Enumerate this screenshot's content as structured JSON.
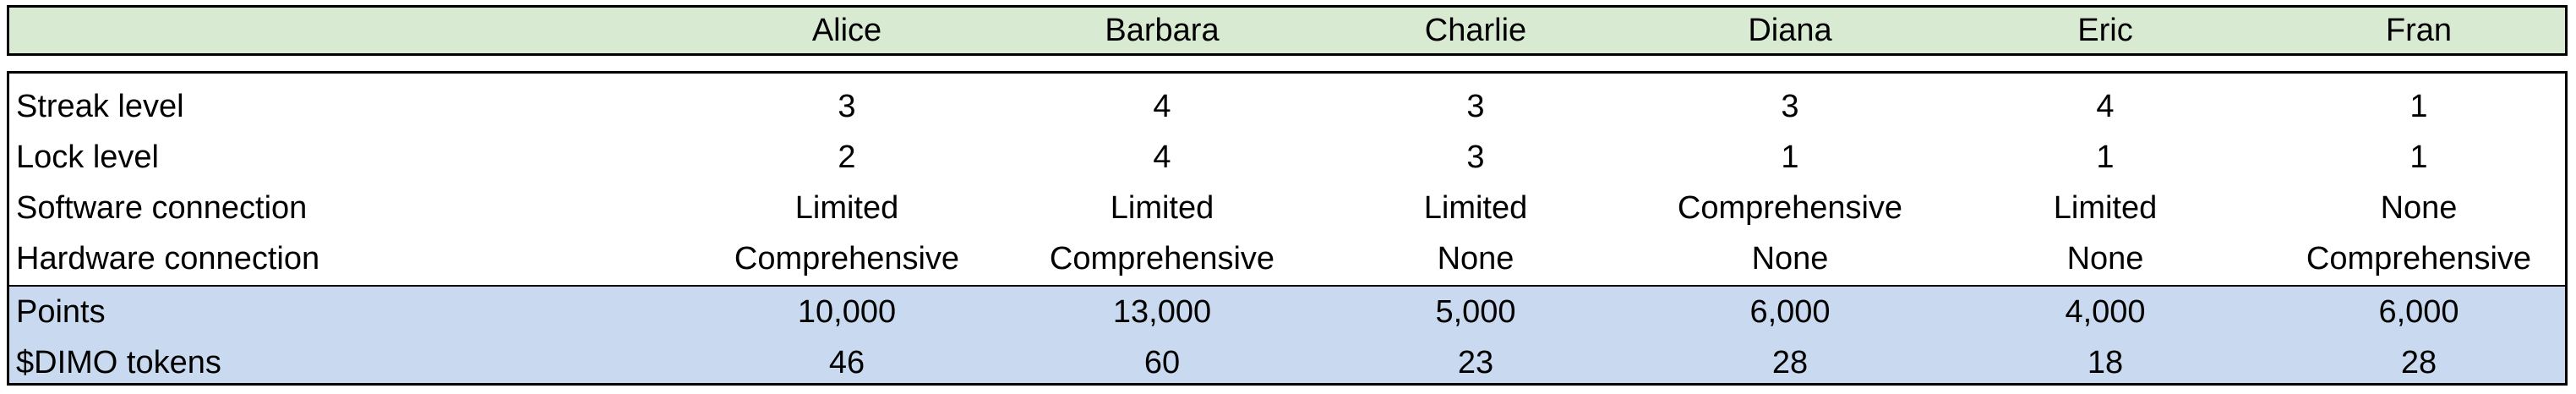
{
  "columns": [
    "Alice",
    "Barbara",
    "Charlie",
    "Diana",
    "Eric",
    "Fran"
  ],
  "rows": [
    {
      "label": "Streak level",
      "values": [
        "3",
        "4",
        "3",
        "3",
        "4",
        "1"
      ]
    },
    {
      "label": "Lock level",
      "values": [
        "2",
        "4",
        "3",
        "1",
        "1",
        "1"
      ]
    },
    {
      "label": "Software connection",
      "values": [
        "Limited",
        "Limited",
        "Limited",
        "Comprehensive",
        "Limited",
        "None"
      ]
    },
    {
      "label": "Hardware connection",
      "values": [
        "Comprehensive",
        "Comprehensive",
        "None",
        "None",
        "None",
        "Comprehensive"
      ]
    },
    {
      "label": "Points",
      "values": [
        "10,000",
        "13,000",
        "5,000",
        "6,000",
        "4,000",
        "6,000"
      ]
    },
    {
      "label": "$DIMO tokens",
      "values": [
        "46",
        "60",
        "23",
        "28",
        "18",
        "28"
      ]
    }
  ],
  "colors": {
    "header_bg": "#d9ead3",
    "highlight_bg": "#c9daf0"
  }
}
